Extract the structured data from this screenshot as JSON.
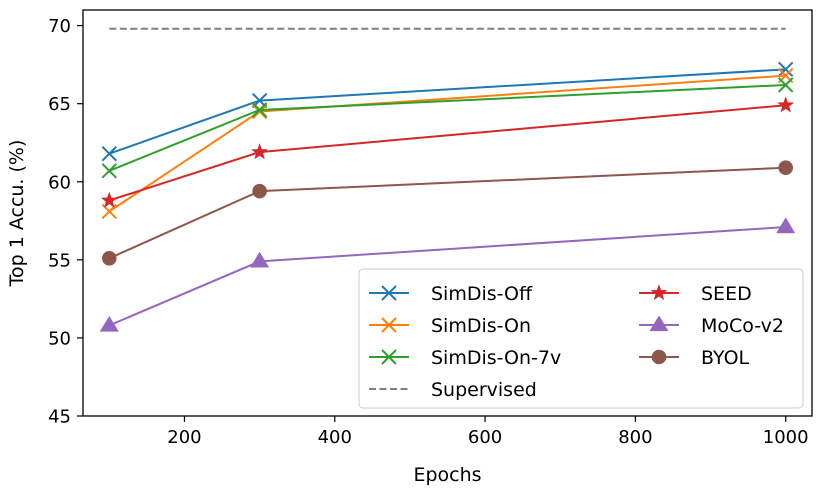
{
  "chart_data": {
    "type": "line",
    "title": "",
    "xlabel": "Epochs",
    "ylabel": "Top 1 Accu. (%)",
    "xlim": [
      65,
      1035
    ],
    "ylim": [
      45,
      71
    ],
    "xticks": [
      200,
      400,
      600,
      800,
      1000
    ],
    "yticks": [
      45,
      50,
      55,
      60,
      65,
      70
    ],
    "grid": false,
    "legend_position": "lower-right",
    "series": [
      {
        "name": "SimDis-Off",
        "color": "#1f77b4",
        "marker": "x",
        "dashed": false,
        "x": [
          100,
          300,
          1000
        ],
        "values": [
          61.8,
          65.2,
          67.2
        ]
      },
      {
        "name": "SimDis-On",
        "color": "#ff7f0e",
        "marker": "x",
        "dashed": false,
        "x": [
          100,
          300,
          1000
        ],
        "values": [
          58.1,
          64.5,
          66.8
        ]
      },
      {
        "name": "SimDis-On-7v",
        "color": "#2ca02c",
        "marker": "x",
        "dashed": false,
        "x": [
          100,
          300,
          1000
        ],
        "values": [
          60.7,
          64.6,
          66.2
        ]
      },
      {
        "name": "Supervised",
        "color": "#7f7f7f",
        "marker": "none",
        "dashed": true,
        "x": [
          100,
          1000
        ],
        "values": [
          69.8,
          69.8
        ]
      },
      {
        "name": "SEED",
        "color": "#d62728",
        "marker": "star",
        "dashed": false,
        "x": [
          100,
          300,
          1000
        ],
        "values": [
          58.8,
          61.9,
          64.9
        ]
      },
      {
        "name": "MoCo-v2",
        "color": "#9467bd",
        "marker": "triangle",
        "dashed": false,
        "x": [
          100,
          300,
          1000
        ],
        "values": [
          50.8,
          54.9,
          57.1
        ]
      },
      {
        "name": "BYOL",
        "color": "#8c564b",
        "marker": "circle",
        "dashed": false,
        "x": [
          100,
          300,
          1000
        ],
        "values": [
          55.1,
          59.4,
          60.9
        ]
      }
    ],
    "legend_columns": [
      [
        "SimDis-Off",
        "SimDis-On",
        "SimDis-On-7v",
        "Supervised"
      ],
      [
        "SEED",
        "MoCo-v2",
        "BYOL"
      ]
    ]
  }
}
